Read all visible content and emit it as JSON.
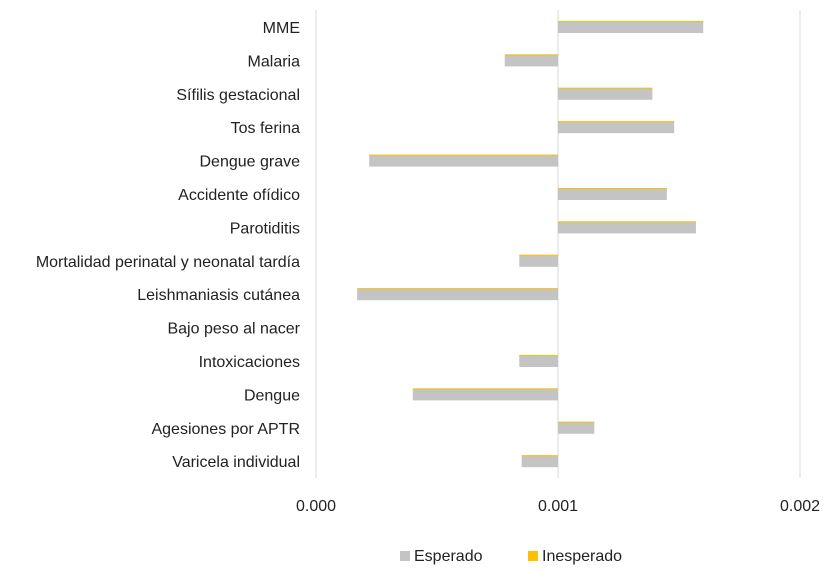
{
  "chart_data": {
    "type": "bar",
    "orientation": "horizontal",
    "categories": [
      "MME",
      "Malaria",
      "Sífilis gestacional",
      "Tos ferina",
      "Dengue grave",
      "Accidente ofídico",
      "Parotiditis",
      "Mortalidad perinatal y neonatal tardía",
      "Leishmaniasis cutánea",
      "Bajo peso al nacer",
      "Intoxicaciones",
      "Dengue",
      "Agesiones por APTR",
      "Varicela individual"
    ],
    "series": [
      {
        "name": "Esperado",
        "color": "#c4c4c4",
        "values": [
          0.0016,
          0.00078,
          0.00139,
          0.00148,
          0.00022,
          0.00145,
          0.00157,
          0.00084,
          0.00017,
          0.001,
          0.00084,
          0.0004,
          0.00115,
          0.00085
        ]
      },
      {
        "name": "Inesperado",
        "color": "#ffc000",
        "values": [
          0,
          0,
          0,
          0,
          0,
          0,
          0,
          0,
          0,
          0,
          0,
          0,
          0,
          0
        ]
      }
    ],
    "baseline": 0.001,
    "xlim": [
      0,
      0.002
    ],
    "xticks": [
      "0.000",
      "0.001",
      "0.002"
    ],
    "grid": true,
    "legend_position": "bottom",
    "title": "",
    "xlabel": "",
    "ylabel": ""
  }
}
